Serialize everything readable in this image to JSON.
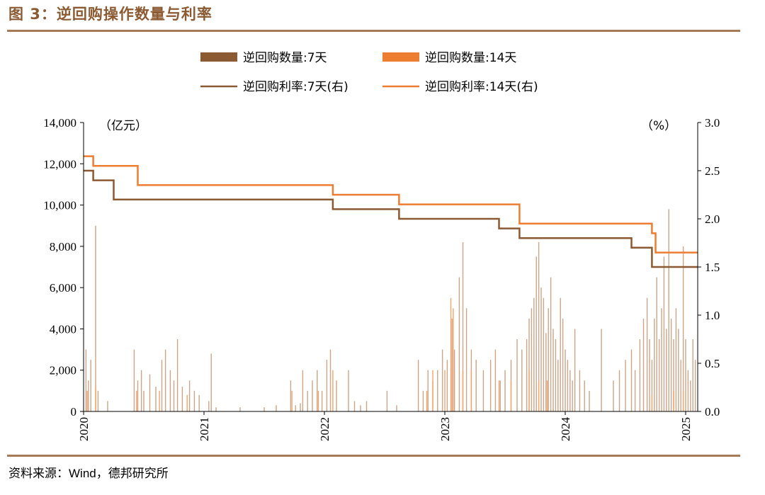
{
  "figure": {
    "title": "图 3：逆回购操作数量与利率",
    "source": "资料来源：Wind，德邦研究所"
  },
  "colors": {
    "accent": "#a47a57",
    "title": "#8b5a33",
    "series_7d": "#8b5a33",
    "series_14d": "#ed7d31"
  },
  "chart_data": {
    "type": "bar+line",
    "left_axis": {
      "unit_label": "（亿元）",
      "min": 0,
      "max": 14000,
      "ticks": [
        0,
        2000,
        4000,
        6000,
        8000,
        10000,
        12000,
        14000
      ],
      "tick_labels": [
        "0",
        "2,000",
        "4,000",
        "6,000",
        "8,000",
        "10,000",
        "12,000",
        "14,000"
      ]
    },
    "right_axis": {
      "unit_label": "（%）",
      "min": 0,
      "max": 3.0,
      "ticks": [
        0,
        0.5,
        1.0,
        1.5,
        2.0,
        2.5,
        3.0
      ],
      "tick_labels": [
        "0.0",
        "0.5",
        "1.0",
        "1.5",
        "2.0",
        "2.5",
        "3.0"
      ]
    },
    "x_axis": {
      "min": 2020.0,
      "max": 2025.1,
      "ticks": [
        2020,
        2021,
        2022,
        2023,
        2024,
        2025
      ],
      "tick_labels": [
        "2020",
        "2021",
        "2022",
        "2023",
        "2024",
        "2025"
      ]
    },
    "legend": [
      {
        "label": "逆回购数量:7天",
        "kind": "bar",
        "color": "#8b5a33"
      },
      {
        "label": "逆回购数量:14天",
        "kind": "bar",
        "color": "#ed7d31"
      },
      {
        "label": "逆回购利率:7天(右)",
        "kind": "line",
        "color": "#8b5a33"
      },
      {
        "label": "逆回购利率:14天(右)",
        "kind": "line",
        "color": "#ed7d31"
      }
    ],
    "rate_7d": [
      [
        2020.0,
        2.5
      ],
      [
        2020.08,
        2.5
      ],
      [
        2020.08,
        2.4
      ],
      [
        2020.25,
        2.4
      ],
      [
        2020.25,
        2.2
      ],
      [
        2022.07,
        2.2
      ],
      [
        2022.07,
        2.1
      ],
      [
        2022.62,
        2.1
      ],
      [
        2022.62,
        2.0
      ],
      [
        2023.45,
        2.0
      ],
      [
        2023.45,
        1.9
      ],
      [
        2023.62,
        1.9
      ],
      [
        2023.62,
        1.8
      ],
      [
        2024.55,
        1.8
      ],
      [
        2024.55,
        1.7
      ],
      [
        2024.72,
        1.7
      ],
      [
        2024.72,
        1.5
      ],
      [
        2025.1,
        1.5
      ]
    ],
    "rate_14d": [
      [
        2020.0,
        2.65
      ],
      [
        2020.08,
        2.65
      ],
      [
        2020.08,
        2.55
      ],
      [
        2020.45,
        2.55
      ],
      [
        2020.45,
        2.35
      ],
      [
        2022.07,
        2.35
      ],
      [
        2022.07,
        2.25
      ],
      [
        2022.62,
        2.25
      ],
      [
        2022.62,
        2.15
      ],
      [
        2023.62,
        2.15
      ],
      [
        2023.62,
        1.95
      ],
      [
        2024.72,
        1.95
      ],
      [
        2024.72,
        1.85
      ],
      [
        2024.75,
        1.85
      ],
      [
        2024.75,
        1.65
      ],
      [
        2025.1,
        1.65
      ]
    ],
    "volume_7d": [
      [
        2020.02,
        3000
      ],
      [
        2020.04,
        1500
      ],
      [
        2020.06,
        2500
      ],
      [
        2020.1,
        9000
      ],
      [
        2020.12,
        1000
      ],
      [
        2020.2,
        500
      ],
      [
        2020.42,
        3000
      ],
      [
        2020.45,
        1500
      ],
      [
        2020.48,
        2000
      ],
      [
        2020.5,
        1000
      ],
      [
        2020.55,
        1800
      ],
      [
        2020.6,
        1200
      ],
      [
        2020.65,
        2500
      ],
      [
        2020.68,
        3000
      ],
      [
        2020.72,
        2000
      ],
      [
        2020.75,
        1500
      ],
      [
        2020.78,
        3500
      ],
      [
        2020.82,
        1200
      ],
      [
        2020.88,
        1500
      ],
      [
        2020.92,
        1000
      ],
      [
        2020.96,
        800
      ],
      [
        2021.04,
        500
      ],
      [
        2021.06,
        2800
      ],
      [
        2021.1,
        200
      ],
      [
        2021.3,
        200
      ],
      [
        2021.5,
        200
      ],
      [
        2021.6,
        300
      ],
      [
        2021.72,
        1500
      ],
      [
        2021.76,
        300
      ],
      [
        2021.8,
        400
      ],
      [
        2021.82,
        2000
      ],
      [
        2021.86,
        1000
      ],
      [
        2021.9,
        1500
      ],
      [
        2021.94,
        2000
      ],
      [
        2021.98,
        1000
      ],
      [
        2022.02,
        2500
      ],
      [
        2022.05,
        3000
      ],
      [
        2022.1,
        1500
      ],
      [
        2022.2,
        2000
      ],
      [
        2022.25,
        500
      ],
      [
        2022.3,
        300
      ],
      [
        2022.35,
        500
      ],
      [
        2022.52,
        1000
      ],
      [
        2022.6,
        300
      ],
      [
        2022.78,
        2500
      ],
      [
        2022.82,
        1000
      ],
      [
        2022.86,
        2000
      ],
      [
        2022.9,
        1500
      ],
      [
        2022.94,
        2000
      ],
      [
        2022.98,
        3000
      ],
      [
        2023.02,
        2500
      ],
      [
        2023.06,
        4500
      ],
      [
        2023.08,
        3000
      ],
      [
        2023.12,
        6500
      ],
      [
        2023.15,
        8200
      ],
      [
        2023.18,
        5000
      ],
      [
        2023.22,
        3000
      ],
      [
        2023.26,
        2500
      ],
      [
        2023.32,
        2000
      ],
      [
        2023.38,
        2500
      ],
      [
        2023.42,
        3000
      ],
      [
        2023.46,
        1500
      ],
      [
        2023.5,
        2000
      ],
      [
        2023.55,
        2500
      ],
      [
        2023.6,
        3500
      ],
      [
        2023.64,
        3000
      ],
      [
        2023.68,
        3500
      ],
      [
        2023.7,
        4500
      ],
      [
        2023.72,
        5000
      ],
      [
        2023.74,
        5500
      ],
      [
        2023.76,
        7500
      ],
      [
        2023.78,
        8200
      ],
      [
        2023.8,
        6000
      ],
      [
        2023.82,
        5500
      ],
      [
        2023.84,
        3800
      ],
      [
        2023.86,
        5000
      ],
      [
        2023.88,
        6500
      ],
      [
        2023.9,
        4000
      ],
      [
        2023.92,
        3500
      ],
      [
        2023.94,
        2500
      ],
      [
        2023.96,
        5500
      ],
      [
        2023.98,
        4500
      ],
      [
        2024.0,
        3000
      ],
      [
        2024.02,
        2500
      ],
      [
        2024.04,
        2000
      ],
      [
        2024.06,
        1500
      ],
      [
        2024.08,
        4000
      ],
      [
        2024.12,
        2000
      ],
      [
        2024.16,
        1500
      ],
      [
        2024.2,
        1000
      ],
      [
        2024.3,
        4000
      ],
      [
        2024.4,
        1500
      ],
      [
        2024.45,
        2000
      ],
      [
        2024.5,
        2500
      ],
      [
        2024.55,
        3000
      ],
      [
        2024.58,
        2000
      ],
      [
        2024.62,
        3500
      ],
      [
        2024.65,
        4500
      ],
      [
        2024.68,
        5500
      ],
      [
        2024.7,
        3500
      ],
      [
        2024.72,
        2500
      ],
      [
        2024.74,
        4500
      ],
      [
        2024.76,
        6500
      ],
      [
        2024.78,
        3500
      ],
      [
        2024.8,
        5000
      ],
      [
        2024.82,
        7500
      ],
      [
        2024.84,
        4000
      ],
      [
        2024.86,
        9800
      ],
      [
        2024.88,
        4500
      ],
      [
        2024.9,
        3500
      ],
      [
        2024.92,
        5000
      ],
      [
        2024.94,
        4000
      ],
      [
        2024.96,
        2500
      ],
      [
        2024.98,
        8000
      ],
      [
        2025.0,
        3500
      ],
      [
        2025.02,
        2000
      ],
      [
        2025.04,
        1500
      ],
      [
        2025.06,
        3500
      ],
      [
        2025.08,
        2500
      ]
    ],
    "volume_14d": [
      [
        2020.03,
        1000
      ],
      [
        2020.1,
        1200
      ],
      [
        2020.44,
        1000
      ],
      [
        2020.63,
        1000
      ],
      [
        2020.86,
        800
      ],
      [
        2021.73,
        1000
      ],
      [
        2021.95,
        1000
      ],
      [
        2022.07,
        2000
      ],
      [
        2022.85,
        1000
      ],
      [
        2022.9,
        2000
      ],
      [
        2023.0,
        2000
      ],
      [
        2023.05,
        5500
      ],
      [
        2023.07,
        5000
      ],
      [
        2023.15,
        2000
      ],
      [
        2023.22,
        2000
      ],
      [
        2023.45,
        1500
      ],
      [
        2023.55,
        1500
      ],
      [
        2023.7,
        2000
      ],
      [
        2023.78,
        1500
      ],
      [
        2023.85,
        1500
      ],
      [
        2024.72,
        800
      ],
      [
        2024.9,
        1000
      ],
      [
        2024.98,
        1000
      ]
    ]
  }
}
